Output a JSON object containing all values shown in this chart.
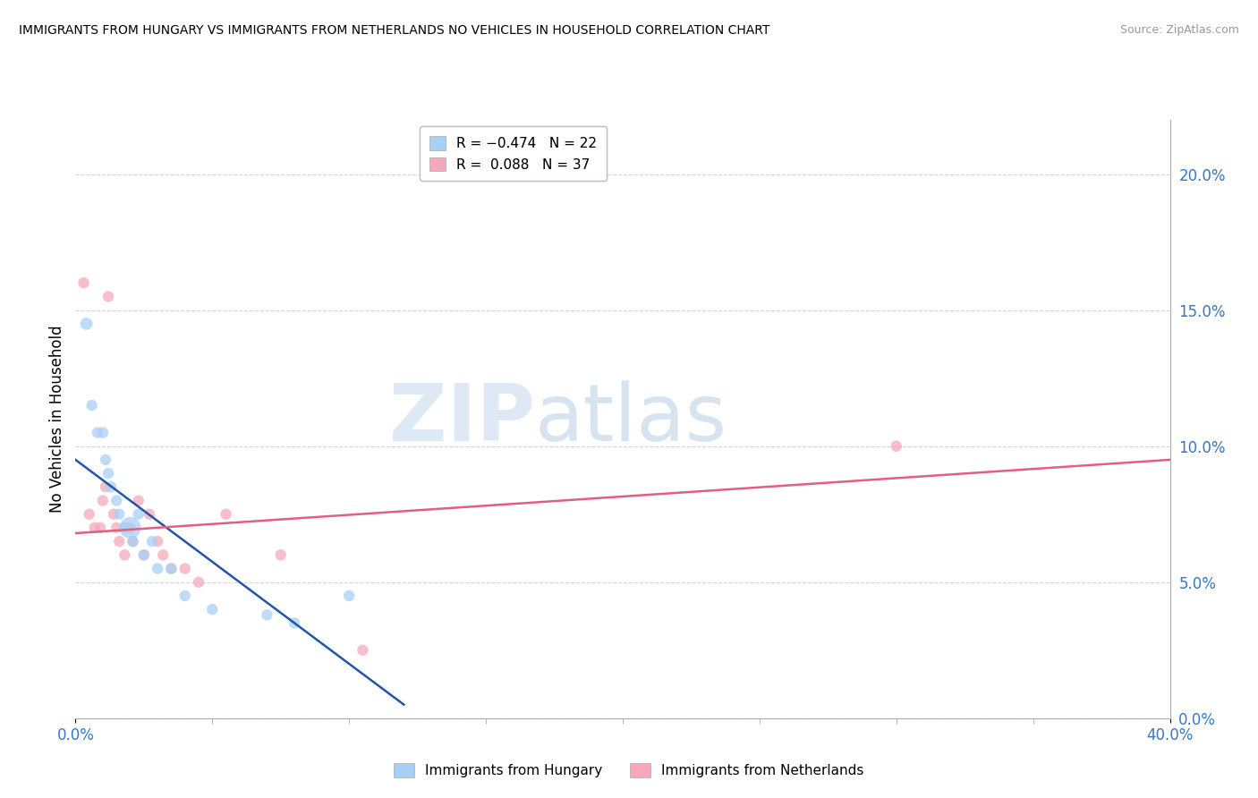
{
  "title": "IMMIGRANTS FROM HUNGARY VS IMMIGRANTS FROM NETHERLANDS NO VEHICLES IN HOUSEHOLD CORRELATION CHART",
  "source": "Source: ZipAtlas.com",
  "ylabel": "No Vehicles in Household",
  "ytick_vals": [
    0.0,
    5.0,
    10.0,
    15.0,
    20.0
  ],
  "xlim": [
    0.0,
    40.0
  ],
  "ylim": [
    0.0,
    22.0
  ],
  "color_hungary": "#A8D0F5",
  "color_netherlands": "#F5A8BC",
  "line_color_hungary": "#2255AA",
  "line_color_netherlands": "#E06080",
  "watermark_zip": "ZIP",
  "watermark_atlas": "atlas",
  "hungary_x": [
    0.4,
    0.6,
    0.8,
    1.0,
    1.1,
    1.2,
    1.3,
    1.5,
    1.6,
    1.8,
    2.0,
    2.1,
    2.3,
    2.5,
    2.8,
    3.0,
    3.5,
    4.0,
    5.0,
    7.0,
    8.0,
    10.0
  ],
  "hungary_y": [
    14.5,
    11.5,
    10.5,
    10.5,
    9.5,
    9.0,
    8.5,
    8.0,
    7.5,
    7.0,
    7.0,
    6.5,
    7.5,
    6.0,
    6.5,
    5.5,
    5.5,
    4.5,
    4.0,
    3.8,
    3.5,
    4.5
  ],
  "hungary_sizes": [
    100,
    80,
    80,
    80,
    80,
    80,
    80,
    80,
    80,
    80,
    300,
    80,
    80,
    80,
    80,
    80,
    80,
    80,
    80,
    80,
    80,
    80
  ],
  "netherlands_x": [
    0.3,
    0.5,
    0.7,
    0.9,
    1.0,
    1.1,
    1.2,
    1.4,
    1.5,
    1.6,
    1.8,
    2.0,
    2.1,
    2.3,
    2.5,
    2.7,
    3.0,
    3.2,
    3.5,
    4.0,
    4.5,
    5.5,
    7.5,
    10.5,
    30.0
  ],
  "netherlands_y": [
    16.0,
    7.5,
    7.0,
    7.0,
    8.0,
    8.5,
    15.5,
    7.5,
    7.0,
    6.5,
    6.0,
    7.0,
    6.5,
    8.0,
    6.0,
    7.5,
    6.5,
    6.0,
    5.5,
    5.5,
    5.0,
    7.5,
    6.0,
    2.5,
    10.0
  ],
  "netherlands_sizes": [
    80,
    80,
    80,
    80,
    80,
    80,
    80,
    80,
    80,
    80,
    80,
    80,
    80,
    80,
    80,
    80,
    80,
    80,
    80,
    80,
    80,
    80,
    80,
    80,
    80
  ],
  "hungary_line_x": [
    0.0,
    12.0
  ],
  "hungary_line_y": [
    9.5,
    0.5
  ],
  "netherlands_line_x": [
    0.0,
    40.0
  ],
  "netherlands_line_y": [
    6.8,
    9.5
  ]
}
